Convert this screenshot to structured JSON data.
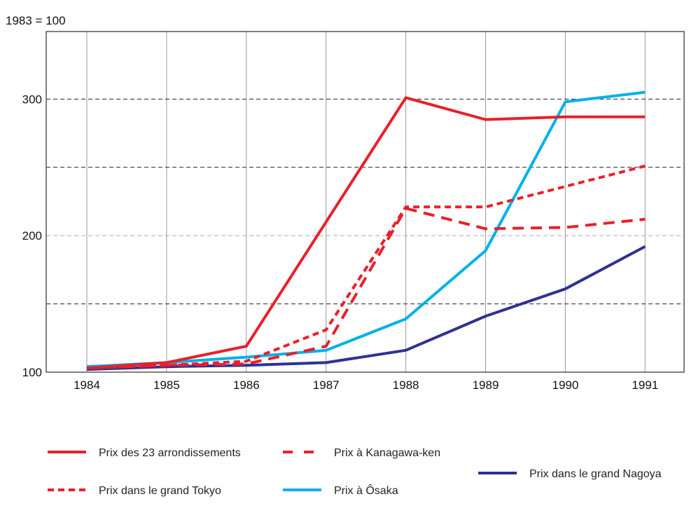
{
  "chart_data": {
    "type": "line",
    "title": "",
    "ylabel": "1983 = 100",
    "xlabel": "",
    "ylim": [
      100,
      350
    ],
    "yticks": [
      100,
      200,
      300
    ],
    "grid": true,
    "legend_placement": "bottom",
    "categories": [
      "1984",
      "1985",
      "1986",
      "1987",
      "1988",
      "1989",
      "1990",
      "1991"
    ],
    "series": [
      {
        "name": "Prix des 23 arrondissements",
        "color": "#e8202a",
        "style": "solid",
        "values": [
          103,
          107,
          119,
          210,
          301,
          285,
          287,
          287
        ]
      },
      {
        "name": "Prix à Kanagawa-ken",
        "color": "#e8202a",
        "style": "long-dash",
        "values": [
          103,
          105,
          106,
          119,
          220,
          205,
          206,
          212
        ]
      },
      {
        "name": "Prix dans le grand Tokyo",
        "color": "#e8202a",
        "style": "short-dash",
        "values": [
          103,
          105,
          108,
          131,
          221,
          221,
          236,
          251
        ]
      },
      {
        "name": "Prix à Ôsaka",
        "color": "#00b0ec",
        "style": "solid",
        "values": [
          104,
          107,
          111,
          116,
          139,
          189,
          298,
          305
        ]
      },
      {
        "name": "Prix dans le grand Nagoya",
        "color": "#2e3192",
        "style": "solid",
        "values": [
          102,
          104,
          105,
          107,
          116,
          141,
          161,
          192
        ]
      }
    ]
  }
}
